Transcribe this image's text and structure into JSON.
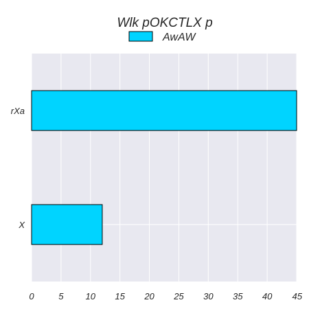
{
  "chart_data": {
    "type": "bar",
    "orientation": "horizontal",
    "title": "Wlk pOKCTLX  p",
    "xlabel": "",
    "ylabel": "",
    "categories": [
      "rXa",
      "X"
    ],
    "series": [
      {
        "name": "AwAW",
        "values": [
          45,
          12
        ],
        "color": "#00d4ff"
      }
    ],
    "xlim": [
      0,
      45
    ],
    "xticks": [
      "0",
      "5",
      "10",
      "15",
      "20",
      "25",
      "30",
      "35",
      "40",
      "45"
    ],
    "grid": true,
    "legend_position": "top-center",
    "background_color": "#e8e8f0",
    "grid_color": "#ffffff",
    "bar_edge_color": "#000000"
  }
}
